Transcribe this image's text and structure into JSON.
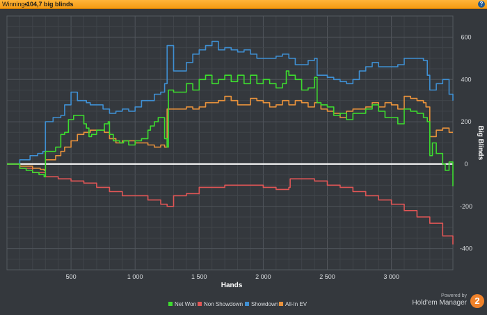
{
  "header": {
    "label": "Winnings:",
    "value": "-104,7 big blinds"
  },
  "branding": {
    "powered": "Powered by",
    "name": "Hold'em Manager",
    "badge": "2"
  },
  "colors": {
    "header": "#f7a623",
    "background": "#34383d",
    "grid": "#4a4f55",
    "zero_line": "#ffffff",
    "net_won": "#3ddc2f",
    "non_showdown": "#e05656",
    "showdown": "#3f8fd2",
    "all_in_ev": "#e8923c"
  },
  "chart_data": {
    "type": "line",
    "xlabel": "Hands",
    "ylabel": "Big Blinds",
    "xlim": [
      0,
      3480
    ],
    "ylim": [
      -500,
      700
    ],
    "xticks": [
      500,
      1000,
      1500,
      2000,
      2500,
      3000
    ],
    "xtick_labels": [
      "500",
      "1 000",
      "1 500",
      "2 000",
      "2 500",
      "3 000"
    ],
    "yticks": [
      -400,
      -200,
      0,
      200,
      400,
      600
    ],
    "ytick_labels": [
      "-400",
      "-200",
      "0",
      "200",
      "400",
      "600"
    ],
    "grid": true,
    "legend_position": "bottom",
    "series": [
      {
        "name": "Net Won",
        "color": "#3ddc2f",
        "points": [
          [
            0,
            0
          ],
          [
            100,
            -20
          ],
          [
            150,
            -30
          ],
          [
            200,
            -40
          ],
          [
            250,
            -50
          ],
          [
            290,
            -60
          ],
          [
            300,
            60
          ],
          [
            380,
            80
          ],
          [
            420,
            140
          ],
          [
            450,
            150
          ],
          [
            480,
            210
          ],
          [
            520,
            230
          ],
          [
            560,
            230
          ],
          [
            600,
            190
          ],
          [
            620,
            170
          ],
          [
            640,
            130
          ],
          [
            660,
            140
          ],
          [
            700,
            160
          ],
          [
            760,
            190
          ],
          [
            790,
            200
          ],
          [
            800,
            140
          ],
          [
            830,
            110
          ],
          [
            880,
            100
          ],
          [
            910,
            110
          ],
          [
            950,
            90
          ],
          [
            1000,
            110
          ],
          [
            1050,
            120
          ],
          [
            1100,
            160
          ],
          [
            1120,
            180
          ],
          [
            1150,
            200
          ],
          [
            1180,
            220
          ],
          [
            1200,
            220
          ],
          [
            1230,
            120
          ],
          [
            1250,
            80
          ],
          [
            1260,
            350
          ],
          [
            1300,
            340
          ],
          [
            1400,
            380
          ],
          [
            1450,
            350
          ],
          [
            1500,
            400
          ],
          [
            1550,
            420
          ],
          [
            1600,
            380
          ],
          [
            1650,
            400
          ],
          [
            1700,
            420
          ],
          [
            1750,
            390
          ],
          [
            1800,
            420
          ],
          [
            1850,
            380
          ],
          [
            1900,
            420
          ],
          [
            1950,
            380
          ],
          [
            2000,
            400
          ],
          [
            2050,
            380
          ],
          [
            2100,
            360
          ],
          [
            2150,
            380
          ],
          [
            2180,
            440
          ],
          [
            2200,
            420
          ],
          [
            2250,
            400
          ],
          [
            2300,
            350
          ],
          [
            2350,
            360
          ],
          [
            2400,
            410
          ],
          [
            2420,
            290
          ],
          [
            2450,
            280
          ],
          [
            2500,
            270
          ],
          [
            2550,
            230
          ],
          [
            2600,
            240
          ],
          [
            2650,
            210
          ],
          [
            2700,
            240
          ],
          [
            2750,
            240
          ],
          [
            2800,
            260
          ],
          [
            2850,
            280
          ],
          [
            2900,
            250
          ],
          [
            2950,
            220
          ],
          [
            3000,
            220
          ],
          [
            3050,
            190
          ],
          [
            3100,
            260
          ],
          [
            3150,
            250
          ],
          [
            3200,
            240
          ],
          [
            3250,
            220
          ],
          [
            3280,
            200
          ],
          [
            3300,
            40
          ],
          [
            3320,
            100
          ],
          [
            3350,
            50
          ],
          [
            3400,
            0
          ],
          [
            3420,
            -30
          ],
          [
            3450,
            10
          ],
          [
            3480,
            -105
          ]
        ]
      },
      {
        "name": "Non Showdown",
        "color": "#e05656",
        "points": [
          [
            0,
            0
          ],
          [
            100,
            -20
          ],
          [
            200,
            -40
          ],
          [
            300,
            -60
          ],
          [
            400,
            -70
          ],
          [
            500,
            -80
          ],
          [
            600,
            -90
          ],
          [
            700,
            -110
          ],
          [
            800,
            -130
          ],
          [
            900,
            -150
          ],
          [
            1000,
            -150
          ],
          [
            1100,
            -170
          ],
          [
            1200,
            -190
          ],
          [
            1250,
            -200
          ],
          [
            1300,
            -150
          ],
          [
            1400,
            -140
          ],
          [
            1500,
            -110
          ],
          [
            1600,
            -110
          ],
          [
            1700,
            -100
          ],
          [
            1800,
            -100
          ],
          [
            1900,
            -100
          ],
          [
            2000,
            -110
          ],
          [
            2100,
            -120
          ],
          [
            2200,
            -110
          ],
          [
            2210,
            -70
          ],
          [
            2300,
            -70
          ],
          [
            2400,
            -80
          ],
          [
            2500,
            -100
          ],
          [
            2600,
            -110
          ],
          [
            2700,
            -130
          ],
          [
            2800,
            -150
          ],
          [
            2900,
            -170
          ],
          [
            3000,
            -190
          ],
          [
            3100,
            -220
          ],
          [
            3200,
            -250
          ],
          [
            3300,
            -280
          ],
          [
            3400,
            -340
          ],
          [
            3480,
            -380
          ]
        ]
      },
      {
        "name": "Showdown",
        "color": "#3f8fd2",
        "points": [
          [
            0,
            0
          ],
          [
            100,
            20
          ],
          [
            180,
            40
          ],
          [
            240,
            50
          ],
          [
            280,
            60
          ],
          [
            300,
            200
          ],
          [
            360,
            220
          ],
          [
            420,
            230
          ],
          [
            450,
            280
          ],
          [
            500,
            340
          ],
          [
            550,
            300
          ],
          [
            620,
            290
          ],
          [
            650,
            280
          ],
          [
            700,
            280
          ],
          [
            750,
            260
          ],
          [
            800,
            240
          ],
          [
            850,
            250
          ],
          [
            900,
            260
          ],
          [
            950,
            250
          ],
          [
            1000,
            270
          ],
          [
            1050,
            300
          ],
          [
            1100,
            300
          ],
          [
            1150,
            330
          ],
          [
            1200,
            340
          ],
          [
            1230,
            380
          ],
          [
            1250,
            560
          ],
          [
            1300,
            440
          ],
          [
            1400,
            480
          ],
          [
            1450,
            520
          ],
          [
            1500,
            540
          ],
          [
            1550,
            560
          ],
          [
            1600,
            580
          ],
          [
            1650,
            540
          ],
          [
            1700,
            550
          ],
          [
            1750,
            540
          ],
          [
            1800,
            530
          ],
          [
            1850,
            540
          ],
          [
            1900,
            520
          ],
          [
            1950,
            500
          ],
          [
            2000,
            500
          ],
          [
            2050,
            500
          ],
          [
            2100,
            510
          ],
          [
            2150,
            520
          ],
          [
            2200,
            500
          ],
          [
            2250,
            470
          ],
          [
            2300,
            470
          ],
          [
            2350,
            490
          ],
          [
            2400,
            500
          ],
          [
            2420,
            420
          ],
          [
            2450,
            420
          ],
          [
            2500,
            410
          ],
          [
            2550,
            400
          ],
          [
            2600,
            390
          ],
          [
            2650,
            380
          ],
          [
            2700,
            400
          ],
          [
            2750,
            440
          ],
          [
            2800,
            460
          ],
          [
            2850,
            480
          ],
          [
            2900,
            460
          ],
          [
            2950,
            460
          ],
          [
            3000,
            460
          ],
          [
            3050,
            470
          ],
          [
            3100,
            500
          ],
          [
            3150,
            500
          ],
          [
            3200,
            500
          ],
          [
            3250,
            490
          ],
          [
            3280,
            420
          ],
          [
            3300,
            350
          ],
          [
            3350,
            380
          ],
          [
            3400,
            400
          ],
          [
            3450,
            330
          ],
          [
            3480,
            300
          ]
        ]
      },
      {
        "name": "All-In EV",
        "color": "#e8923c",
        "points": [
          [
            0,
            0
          ],
          [
            100,
            -10
          ],
          [
            200,
            -20
          ],
          [
            260,
            -25
          ],
          [
            290,
            -30
          ],
          [
            300,
            20
          ],
          [
            380,
            40
          ],
          [
            420,
            60
          ],
          [
            450,
            80
          ],
          [
            500,
            110
          ],
          [
            550,
            140
          ],
          [
            600,
            150
          ],
          [
            650,
            160
          ],
          [
            700,
            160
          ],
          [
            760,
            150
          ],
          [
            800,
            120
          ],
          [
            850,
            100
          ],
          [
            900,
            110
          ],
          [
            950,
            110
          ],
          [
            1000,
            100
          ],
          [
            1050,
            100
          ],
          [
            1100,
            90
          ],
          [
            1150,
            80
          ],
          [
            1200,
            90
          ],
          [
            1230,
            80
          ],
          [
            1250,
            260
          ],
          [
            1300,
            260
          ],
          [
            1400,
            270
          ],
          [
            1450,
            260
          ],
          [
            1500,
            270
          ],
          [
            1550,
            290
          ],
          [
            1600,
            290
          ],
          [
            1650,
            300
          ],
          [
            1700,
            320
          ],
          [
            1750,
            300
          ],
          [
            1800,
            280
          ],
          [
            1850,
            280
          ],
          [
            1900,
            310
          ],
          [
            1950,
            300
          ],
          [
            2000,
            290
          ],
          [
            2050,
            270
          ],
          [
            2100,
            280
          ],
          [
            2150,
            300
          ],
          [
            2200,
            280
          ],
          [
            2250,
            300
          ],
          [
            2300,
            290
          ],
          [
            2350,
            270
          ],
          [
            2400,
            290
          ],
          [
            2450,
            260
          ],
          [
            2500,
            250
          ],
          [
            2550,
            240
          ],
          [
            2600,
            220
          ],
          [
            2650,
            250
          ],
          [
            2700,
            260
          ],
          [
            2750,
            260
          ],
          [
            2800,
            270
          ],
          [
            2850,
            290
          ],
          [
            2900,
            270
          ],
          [
            2950,
            290
          ],
          [
            3000,
            280
          ],
          [
            3050,
            260
          ],
          [
            3100,
            320
          ],
          [
            3150,
            310
          ],
          [
            3200,
            300
          ],
          [
            3250,
            290
          ],
          [
            3270,
            270
          ],
          [
            3300,
            130
          ],
          [
            3350,
            160
          ],
          [
            3400,
            170
          ],
          [
            3450,
            150
          ],
          [
            3480,
            150
          ]
        ]
      }
    ]
  }
}
